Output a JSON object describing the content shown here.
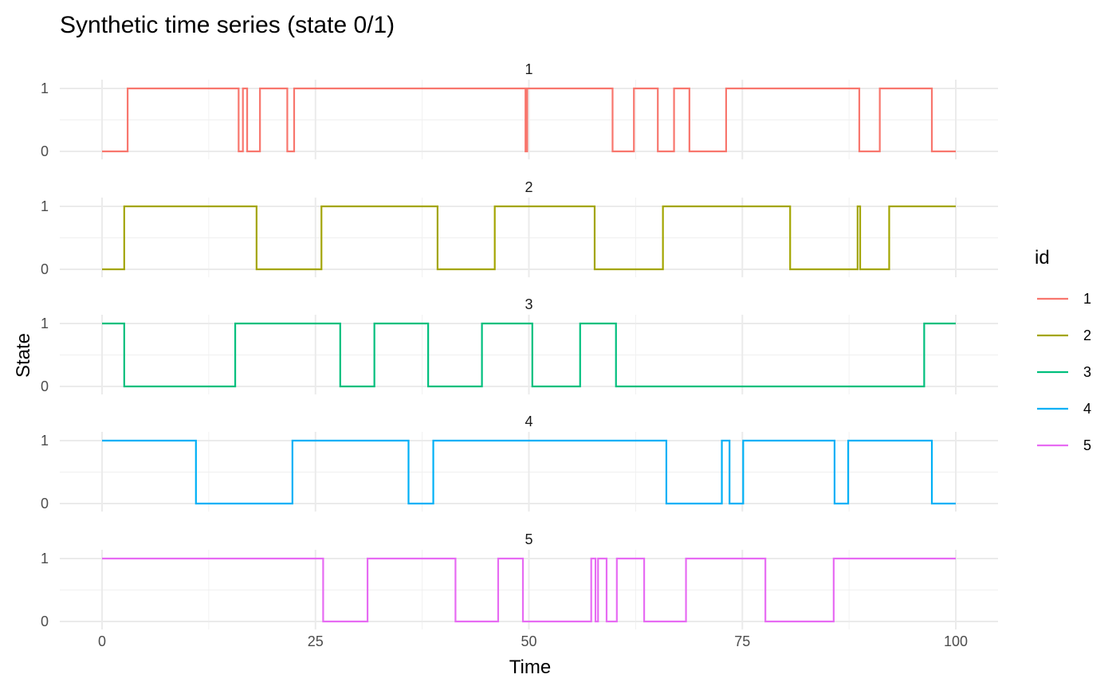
{
  "chart_data": {
    "type": "line",
    "title": "Synthetic time series (state 0/1)",
    "xlabel": "Time",
    "ylabel": "State",
    "xlim": [
      0,
      100
    ],
    "ylim": [
      0,
      1
    ],
    "x_ticks": [
      "0",
      "25",
      "50",
      "75",
      "100"
    ],
    "y_ticks": [
      "0",
      "1"
    ],
    "grid": true,
    "legend": {
      "title": "id",
      "position": "right"
    },
    "series": [
      {
        "name": "1",
        "color": "#F8766D",
        "steps": [
          [
            0,
            0
          ],
          [
            3,
            1
          ],
          [
            16,
            0
          ],
          [
            16.5,
            1
          ],
          [
            17,
            0
          ],
          [
            18.5,
            1
          ],
          [
            21.7,
            0
          ],
          [
            22.5,
            1
          ],
          [
            49.6,
            0
          ],
          [
            49.8,
            1
          ],
          [
            59.8,
            0
          ],
          [
            62.3,
            1
          ],
          [
            65.1,
            0
          ],
          [
            67,
            1
          ],
          [
            68.8,
            0
          ],
          [
            73.1,
            1
          ],
          [
            88.7,
            0
          ],
          [
            91.1,
            1
          ],
          [
            97.2,
            0
          ],
          [
            100,
            0
          ]
        ]
      },
      {
        "name": "2",
        "color": "#A3A500",
        "steps": [
          [
            0,
            0
          ],
          [
            2.6,
            1
          ],
          [
            18.1,
            0
          ],
          [
            25.7,
            1
          ],
          [
            39.3,
            0
          ],
          [
            46,
            1
          ],
          [
            57.7,
            0
          ],
          [
            65.7,
            1
          ],
          [
            80.6,
            0
          ],
          [
            88.5,
            1
          ],
          [
            88.8,
            0
          ],
          [
            92.2,
            1
          ],
          [
            100,
            1
          ]
        ]
      },
      {
        "name": "3",
        "color": "#00BF7D",
        "steps": [
          [
            0,
            1
          ],
          [
            2.6,
            0
          ],
          [
            15.6,
            1
          ],
          [
            27.9,
            0
          ],
          [
            31.9,
            1
          ],
          [
            38.2,
            0
          ],
          [
            44.5,
            1
          ],
          [
            50.4,
            0
          ],
          [
            56,
            1
          ],
          [
            60.2,
            0
          ],
          [
            96.3,
            1
          ],
          [
            100,
            1
          ]
        ]
      },
      {
        "name": "4",
        "color": "#00B0F6",
        "steps": [
          [
            0,
            1
          ],
          [
            11,
            0
          ],
          [
            22.3,
            1
          ],
          [
            35.9,
            0
          ],
          [
            38.8,
            1
          ],
          [
            66.1,
            0
          ],
          [
            72.6,
            1
          ],
          [
            73.5,
            0
          ],
          [
            75.1,
            1
          ],
          [
            85.8,
            0
          ],
          [
            87.4,
            1
          ],
          [
            97.2,
            0
          ],
          [
            100,
            0
          ]
        ]
      },
      {
        "name": "5",
        "color": "#E76BF3",
        "steps": [
          [
            0,
            1
          ],
          [
            25.9,
            0
          ],
          [
            31.1,
            1
          ],
          [
            41.4,
            0
          ],
          [
            46.4,
            1
          ],
          [
            49.3,
            0
          ],
          [
            57.3,
            1
          ],
          [
            57.8,
            0
          ],
          [
            58.1,
            1
          ],
          [
            59.1,
            0
          ],
          [
            60.3,
            1
          ],
          [
            63.5,
            0
          ],
          [
            68.4,
            1
          ],
          [
            77.7,
            0
          ],
          [
            85.7,
            1
          ],
          [
            100,
            1
          ]
        ]
      }
    ]
  }
}
